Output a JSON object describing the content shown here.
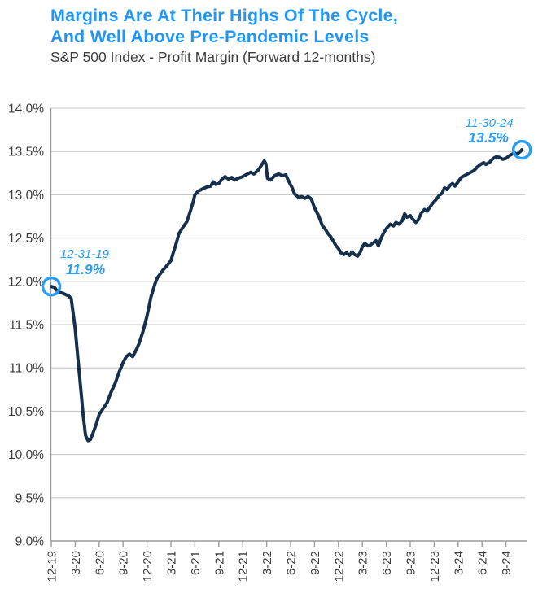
{
  "header": {
    "title_line1": "Margins Are At Their Highs Of The Cycle,",
    "title_line2": "And Well Above Pre-Pandemic Levels",
    "subtitle": "S&P 500 Index - Profit Margin (Forward 12-months)"
  },
  "colors": {
    "title_blue": "#2196f3",
    "annotation_blue": "#2a9df4",
    "line_navy": "#15304c",
    "grid_gray": "#c9c9c9",
    "axis_gray": "#9b9b9b",
    "label_gray": "#3c3c3c",
    "background": "#ffffff"
  },
  "chart_data": {
    "type": "line",
    "title": "S&P 500 Index - Profit Margin (Forward 12-months)",
    "x_unit": "months since 12-31-2019 (decimals are intra-month readings)",
    "ylabel": "Forward 12-month profit margin",
    "ylim": [
      9.0,
      14.0
    ],
    "grid": true,
    "y_tick_labels": [
      "14.0%",
      "13.5%",
      "13.0%",
      "12.5%",
      "12.0%",
      "11.5%",
      "11.0%",
      "10.5%",
      "10.0%",
      "9.5%",
      "9.0%"
    ],
    "y_tick_values": [
      14.0,
      13.5,
      13.0,
      12.5,
      12.0,
      11.5,
      11.0,
      10.5,
      10.0,
      9.5,
      9.0
    ],
    "x_tick_labels": [
      "12-19",
      "3-20",
      "6-20",
      "9-20",
      "12-20",
      "3-21",
      "6-21",
      "9-21",
      "12-21",
      "3-22",
      "6-22",
      "9-22",
      "12-22",
      "3-23",
      "6-23",
      "9-23",
      "12-23",
      "3-24",
      "6-24",
      "9-24"
    ],
    "x_tick_months": [
      0,
      3,
      6,
      9,
      12,
      15,
      18,
      21,
      24,
      27,
      30,
      33,
      36,
      39,
      42,
      45,
      48,
      51,
      54,
      57
    ],
    "series": [
      {
        "name": "S&P 500 forward 12-month profit margin (%)",
        "points": [
          [
            0,
            11.94
          ],
          [
            0.4,
            11.93
          ],
          [
            0.8,
            11.88
          ],
          [
            1.5,
            11.86
          ],
          [
            2.2,
            11.83
          ],
          [
            2.5,
            11.8
          ],
          [
            3,
            11.45
          ],
          [
            3.3,
            11.15
          ],
          [
            3.7,
            10.75
          ],
          [
            4,
            10.45
          ],
          [
            4.3,
            10.22
          ],
          [
            4.6,
            10.16
          ],
          [
            4.9,
            10.17
          ],
          [
            5.2,
            10.24
          ],
          [
            5.6,
            10.34
          ],
          [
            6,
            10.46
          ],
          [
            6.5,
            10.53
          ],
          [
            7,
            10.6
          ],
          [
            7.5,
            10.72
          ],
          [
            8,
            10.82
          ],
          [
            8.5,
            10.95
          ],
          [
            9,
            11.06
          ],
          [
            9.4,
            11.13
          ],
          [
            9.8,
            11.16
          ],
          [
            10.2,
            11.13
          ],
          [
            10.6,
            11.2
          ],
          [
            11,
            11.28
          ],
          [
            11.5,
            11.42
          ],
          [
            12,
            11.6
          ],
          [
            12.5,
            11.82
          ],
          [
            13,
            11.97
          ],
          [
            13.3,
            12.04
          ],
          [
            14,
            12.13
          ],
          [
            14.5,
            12.18
          ],
          [
            15,
            12.24
          ],
          [
            15.3,
            12.33
          ],
          [
            15.7,
            12.45
          ],
          [
            16,
            12.55
          ],
          [
            16.4,
            12.61
          ],
          [
            17,
            12.69
          ],
          [
            17.4,
            12.8
          ],
          [
            17.8,
            12.92
          ],
          [
            18,
            13.0
          ],
          [
            18.4,
            13.04
          ],
          [
            19,
            13.07
          ],
          [
            19.5,
            13.09
          ],
          [
            20,
            13.1
          ],
          [
            20.3,
            13.15
          ],
          [
            20.6,
            13.12
          ],
          [
            21,
            13.13
          ],
          [
            21.4,
            13.18
          ],
          [
            21.8,
            13.21
          ],
          [
            22.2,
            13.18
          ],
          [
            22.6,
            13.2
          ],
          [
            23,
            13.17
          ],
          [
            23.4,
            13.19
          ],
          [
            24,
            13.21
          ],
          [
            24.4,
            13.23
          ],
          [
            25,
            13.26
          ],
          [
            25.4,
            13.24
          ],
          [
            26,
            13.29
          ],
          [
            26.4,
            13.35
          ],
          [
            26.7,
            13.39
          ],
          [
            26.9,
            13.36
          ],
          [
            27.1,
            13.19
          ],
          [
            27.5,
            13.17
          ],
          [
            28,
            13.22
          ],
          [
            28.5,
            13.24
          ],
          [
            29,
            13.22
          ],
          [
            29.4,
            13.23
          ],
          [
            29.8,
            13.15
          ],
          [
            30.2,
            13.08
          ],
          [
            30.5,
            13.01
          ],
          [
            31,
            12.97
          ],
          [
            31.4,
            12.98
          ],
          [
            31.8,
            12.96
          ],
          [
            32.2,
            12.98
          ],
          [
            32.6,
            12.95
          ],
          [
            33,
            12.85
          ],
          [
            33.5,
            12.76
          ],
          [
            34,
            12.64
          ],
          [
            34.3,
            12.61
          ],
          [
            34.7,
            12.55
          ],
          [
            35,
            12.52
          ],
          [
            35.4,
            12.46
          ],
          [
            35.7,
            12.41
          ],
          [
            36,
            12.38
          ],
          [
            36.3,
            12.33
          ],
          [
            36.7,
            12.31
          ],
          [
            37,
            12.33
          ],
          [
            37.4,
            12.3
          ],
          [
            37.7,
            12.34
          ],
          [
            38,
            12.31
          ],
          [
            38.4,
            12.29
          ],
          [
            38.7,
            12.33
          ],
          [
            39,
            12.4
          ],
          [
            39.3,
            12.44
          ],
          [
            39.7,
            12.41
          ],
          [
            40,
            12.42
          ],
          [
            40.3,
            12.44
          ],
          [
            40.7,
            12.47
          ],
          [
            41,
            12.41
          ],
          [
            41.4,
            12.51
          ],
          [
            41.8,
            12.58
          ],
          [
            42.1,
            12.62
          ],
          [
            42.5,
            12.66
          ],
          [
            42.9,
            12.64
          ],
          [
            43.2,
            12.68
          ],
          [
            43.6,
            12.66
          ],
          [
            44,
            12.7
          ],
          [
            44.3,
            12.78
          ],
          [
            44.6,
            12.74
          ],
          [
            45,
            12.76
          ],
          [
            45.3,
            12.72
          ],
          [
            45.7,
            12.68
          ],
          [
            46,
            12.71
          ],
          [
            46.4,
            12.79
          ],
          [
            46.8,
            12.83
          ],
          [
            47.1,
            12.81
          ],
          [
            47.5,
            12.86
          ],
          [
            47.8,
            12.9
          ],
          [
            48.2,
            12.94
          ],
          [
            48.6,
            12.99
          ],
          [
            49,
            13.02
          ],
          [
            49.3,
            13.08
          ],
          [
            49.6,
            13.06
          ],
          [
            50,
            13.11
          ],
          [
            50.3,
            13.13
          ],
          [
            50.6,
            13.1
          ],
          [
            51,
            13.15
          ],
          [
            51.4,
            13.2
          ],
          [
            52,
            13.23
          ],
          [
            52.4,
            13.25
          ],
          [
            53,
            13.28
          ],
          [
            53.4,
            13.32
          ],
          [
            53.8,
            13.35
          ],
          [
            54.2,
            13.37
          ],
          [
            54.5,
            13.35
          ],
          [
            55,
            13.38
          ],
          [
            55.4,
            13.42
          ],
          [
            55.8,
            13.44
          ],
          [
            56.2,
            13.43
          ],
          [
            56.6,
            13.41
          ],
          [
            57,
            13.42
          ],
          [
            57.4,
            13.45
          ],
          [
            57.8,
            13.47
          ],
          [
            58.1,
            13.48
          ],
          [
            58.4,
            13.47
          ],
          [
            58.8,
            13.5
          ],
          [
            59,
            13.52
          ]
        ]
      }
    ],
    "annotations": [
      {
        "date": "12-31-19",
        "value_label": "11.9%",
        "month": 0,
        "value": 11.94
      },
      {
        "date": "11-30-24",
        "value_label": "13.5%",
        "month": 59,
        "value": 13.52
      }
    ]
  }
}
